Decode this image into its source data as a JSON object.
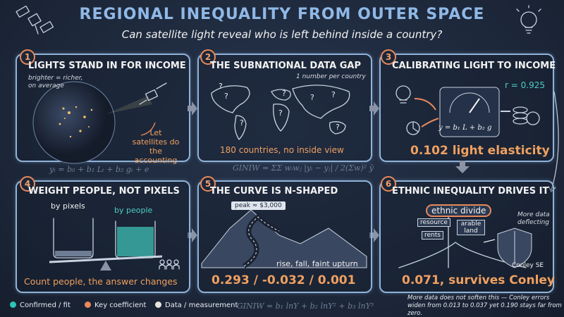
{
  "header": {
    "title": "REGIONAL INEQUALITY FROM OUTER SPACE",
    "subtitle": "Can satellite light reveal who is left behind inside a country?"
  },
  "panels": [
    {
      "number": "1",
      "title": "LIGHTS STAND IN FOR INCOME",
      "note": "brighter = richer, on average",
      "caption": "Let satellites do the accounting"
    },
    {
      "number": "2",
      "title": "THE SUBNATIONAL DATA GAP",
      "note": "1 number per country",
      "caption": "180 countries, no inside view"
    },
    {
      "number": "3",
      "title": "CALIBRATING LIGHT TO INCOME",
      "fit": "r = 0.925",
      "formula": "y = b₁ L + b₂ g",
      "key": "0.102 light elasticity"
    },
    {
      "number": "4",
      "title": "WEIGHT PEOPLE, NOT PIXELS",
      "left_label": "by pixels",
      "right_label": "by people",
      "caption": "Count people, the answer changes"
    },
    {
      "number": "5",
      "title": "THE CURVE IS N-SHAPED",
      "sign": "peak ≈ $3,000",
      "note": "rise, fall, faint upturn",
      "key": "0.293 / -0.032 / 0.001"
    },
    {
      "number": "6",
      "title": "ETHNIC INEQUALITY DRIVES IT",
      "signs": [
        "ethnic divide",
        "resource",
        "rents",
        "arable land"
      ],
      "note": "More data deflecting",
      "shield": "Conley SE",
      "key": "0.071, survives Conley"
    }
  ],
  "formulas": [
    "yₜ = b₀ + b₁ Lₜ + b₂ gₜ + e",
    "GINIW = ΣΣ wᵢwⱼ |yᵢ − yⱼ| / 2(Σw)² ȳ",
    "GINIW = b₁ lnY + b₂ lnY² + b₃ lnY³"
  ],
  "legend": [
    "Confirmed / fit",
    "Key coefficient",
    "Data / measurement"
  ],
  "footer": "More data does not soften this — Conley errors widen from 0.013 to 0.037 yet 0.190 stays far from zero."
}
